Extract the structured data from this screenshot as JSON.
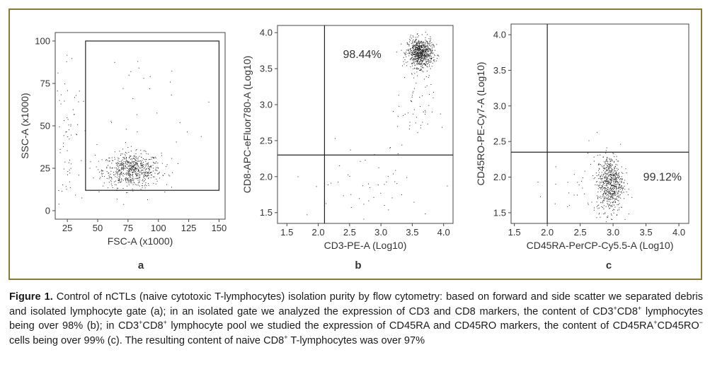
{
  "chart_data": [
    {
      "type": "scatter",
      "panel_label": "a",
      "xlabel": "FSC-A  (x1000)",
      "ylabel": "SSC-A  (x1000)",
      "xlim": [
        15,
        155
      ],
      "ylim": [
        -5,
        105
      ],
      "xticks": [
        25,
        50,
        75,
        100,
        125,
        150
      ],
      "yticks": [
        0,
        25,
        50,
        75,
        100
      ],
      "xtick_labels": [
        "25",
        "50",
        "75",
        "100",
        "125",
        "150"
      ],
      "ytick_labels": [
        "0",
        "25",
        "50",
        "75",
        "100"
      ],
      "gate": {
        "type": "rect",
        "x": [
          40,
          150
        ],
        "y": [
          12,
          100
        ]
      },
      "clusters": [
        {
          "cx": 78,
          "cy": 24,
          "sx": 12,
          "sy": 5,
          "n": 650
        },
        {
          "cx": 25,
          "cy": 45,
          "sx": 6,
          "sy": 25,
          "n": 70
        },
        {
          "cx": 80,
          "cy": 55,
          "sx": 30,
          "sy": 25,
          "n": 40
        }
      ]
    },
    {
      "type": "scatter",
      "panel_label": "b",
      "xlabel": "CD3-PE-A  (Log10)",
      "ylabel": "CD8-APC-eFluor780-A  (Log10)",
      "xlim": [
        1.35,
        4.15
      ],
      "ylim": [
        1.35,
        4.1
      ],
      "xticks": [
        1.5,
        2.0,
        2.5,
        3.0,
        3.5,
        4.0
      ],
      "yticks": [
        1.5,
        2.0,
        2.5,
        3.0,
        3.5,
        4.0
      ],
      "xtick_labels": [
        "1.5",
        "2.0",
        "2.5",
        "3.0",
        "3.5",
        "4.0"
      ],
      "ytick_labels": [
        "1.5",
        "2.0",
        "2.5",
        "3.0",
        "3.5",
        "4.0"
      ],
      "quadrant": {
        "x": 2.1,
        "y": 2.3
      },
      "annotation": "98.44%",
      "clusters": [
        {
          "cx": 3.62,
          "cy": 3.72,
          "sx": 0.1,
          "sy": 0.1,
          "n": 750
        },
        {
          "cx": 3.55,
          "cy": 3.0,
          "sx": 0.15,
          "sy": 0.3,
          "n": 60
        },
        {
          "cx": 2.8,
          "cy": 1.9,
          "sx": 0.6,
          "sy": 0.3,
          "n": 50
        }
      ]
    },
    {
      "type": "scatter",
      "panel_label": "c",
      "xlabel": "CD45RA-PerCP-Cy5.5-A  (Log10)",
      "ylabel": "CD45RO-PE-Cy7-A  (Log10)",
      "xlim": [
        1.45,
        4.15
      ],
      "ylim": [
        1.35,
        4.15
      ],
      "xticks": [
        1.5,
        2.0,
        2.5,
        3.0,
        3.5,
        4.0
      ],
      "yticks": [
        1.5,
        2.0,
        2.5,
        3.0,
        3.5,
        4.0
      ],
      "xtick_labels": [
        "1.5",
        "2.0",
        "2.5",
        "3.0",
        "3.5",
        "4.0"
      ],
      "ytick_labels": [
        "1.5",
        "2.0",
        "2.5",
        "3.0",
        "3.5",
        "4.0"
      ],
      "quadrant": {
        "x": 2.0,
        "y": 2.35
      },
      "annotation": "99.12%",
      "clusters": [
        {
          "cx": 2.95,
          "cy": 1.92,
          "sx": 0.1,
          "sy": 0.2,
          "n": 650
        },
        {
          "cx": 2.5,
          "cy": 1.8,
          "sx": 0.35,
          "sy": 0.2,
          "n": 40
        }
      ]
    }
  ],
  "caption": {
    "figure_label": "Figure 1.",
    "segments": [
      {
        "text": " Control of nCTLs (naive cytotoxic T-lymphocytes) isolation purity by flow cytometry: based on forward and side scatter we separated debris and isolated lymphocyte gate (a); in an isolated gate we analyzed the expression of CD3 and CD8 markers, the content of CD3"
      },
      {
        "text": "+",
        "sup": true
      },
      {
        "text": "CD8"
      },
      {
        "text": "+",
        "sup": true
      },
      {
        "text": " lymphocytes being over 98% (b); in CD3"
      },
      {
        "text": "+",
        "sup": true
      },
      {
        "text": "CD8"
      },
      {
        "text": "+",
        "sup": true
      },
      {
        "text": " lymphocyte pool we studied the expression of CD45RA and CD45RO markers, the content of CD45RA"
      },
      {
        "text": "+",
        "sup": true
      },
      {
        "text": "CD45RO"
      },
      {
        "text": "−",
        "sup": true
      },
      {
        "text": " cells being over 99% (c). The resulting content of naive CD8"
      },
      {
        "text": "+",
        "sup": true
      },
      {
        "text": " T-lymphocytes was over 97%"
      }
    ]
  },
  "colors": {
    "frame": "#8a7a3a",
    "axis": "#444444",
    "dot": "#222222"
  }
}
